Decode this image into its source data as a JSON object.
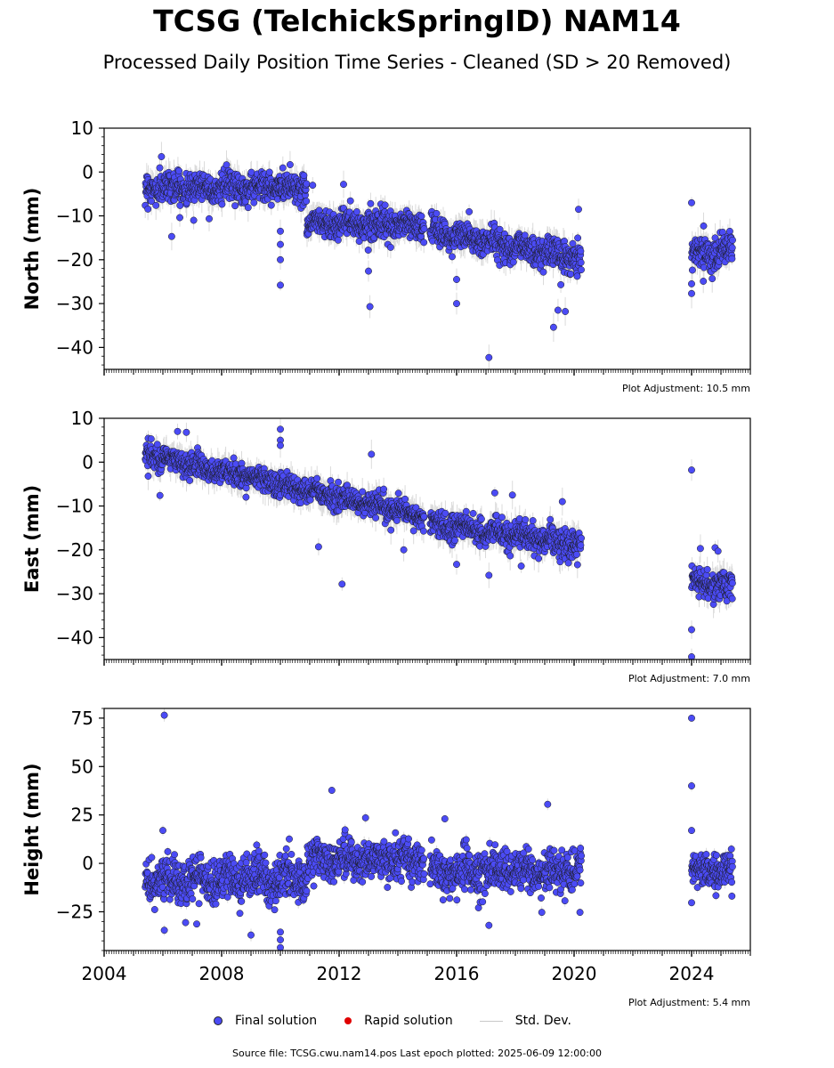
{
  "title": "TCSG (TelchickSpringID) NAM14",
  "subtitle": "Processed Daily Position Time Series - Cleaned (SD > 20 Removed)",
  "source_note": "Source file: TCSG.cwu.nam14.pos  Last epoch plotted: 2025-06-09 12:00:00",
  "legend": {
    "final": "Final solution",
    "rapid": "Rapid solution",
    "std": "Std. Dev."
  },
  "colors": {
    "final_fill": "#4b4bf5",
    "final_edge": "#1a1a1a",
    "rapid": "#e00000",
    "std_dev": "#bdbdbd"
  },
  "chart_data": [
    {
      "type": "scatter",
      "ylabel": "North (mm)",
      "adjustment_label": "Plot Adjustment: 10.5 mm",
      "xlim": [
        2004.0,
        2026.0
      ],
      "ylim": [
        -45,
        10
      ],
      "yticks": [
        10,
        0,
        -10,
        -20,
        -30,
        -40
      ],
      "xticks": [
        2004,
        2008,
        2012,
        2016,
        2020,
        2024
      ],
      "show_xtick_labels": false,
      "segments": [
        {
          "x": [
            2005.4,
            2010.9
          ],
          "y0": -3.5,
          "slope": 0,
          "noise": 2.2
        },
        {
          "x": [
            2010.9,
            2014.9
          ],
          "y0": -11.5,
          "slope": -0.2,
          "noise": 2.0
        },
        {
          "x": [
            2015.1,
            2020.25
          ],
          "y0": -13.5,
          "slope": -1.2,
          "noise": 2.2
        },
        {
          "x": [
            2024.0,
            2025.4
          ],
          "y0": -18.5,
          "slope": 0.5,
          "noise": 2.3
        }
      ],
      "outliers": [
        [
          2005.95,
          3.5
        ],
        [
          2006.3,
          -14.7
        ],
        [
          2007.05,
          -11
        ],
        [
          2010.0,
          -25.8
        ],
        [
          2010.0,
          -20
        ],
        [
          2010.0,
          -16.5
        ],
        [
          2010.0,
          -13.5
        ],
        [
          2011.1,
          -3
        ],
        [
          2012.15,
          -2.8
        ],
        [
          2013.0,
          -22.6
        ],
        [
          2013.05,
          -30.7
        ],
        [
          2016.0,
          -24.5
        ],
        [
          2016.0,
          -30
        ],
        [
          2017.1,
          -42.3
        ],
        [
          2019.3,
          -35.4
        ],
        [
          2019.45,
          -31.5
        ],
        [
          2019.55,
          -25.7
        ],
        [
          2019.7,
          -31.8
        ],
        [
          2020.15,
          -8.5
        ],
        [
          2024.0,
          -7
        ],
        [
          2024.0,
          -25.5
        ],
        [
          2024.0,
          -27.7
        ],
        [
          2024.4,
          -24.9
        ]
      ]
    },
    {
      "type": "scatter",
      "ylabel": "East (mm)",
      "adjustment_label": "Plot Adjustment: 7.0 mm",
      "xlim": [
        2004.0,
        2026.0
      ],
      "ylim": [
        -45,
        10
      ],
      "yticks": [
        10,
        0,
        -10,
        -20,
        -30,
        -40
      ],
      "xticks": [
        2004,
        2008,
        2012,
        2016,
        2020,
        2024
      ],
      "show_xtick_labels": false,
      "segments": [
        {
          "x": [
            2005.4,
            2014.9
          ],
          "y0": 2.0,
          "slope": -1.53,
          "noise": 1.8
        },
        {
          "x": [
            2015.1,
            2020.25
          ],
          "y0": -14.0,
          "slope": -0.95,
          "noise": 2.0
        },
        {
          "x": [
            2024.0,
            2025.4
          ],
          "y0": -27.0,
          "slope": -1.2,
          "noise": 2.0
        }
      ],
      "outliers": [
        [
          2005.5,
          -3.2
        ],
        [
          2005.9,
          -7.6
        ],
        [
          2006.5,
          7.0
        ],
        [
          2006.8,
          6.8
        ],
        [
          2010.0,
          7.5
        ],
        [
          2010.0,
          5.0
        ],
        [
          2010.0,
          3.8
        ],
        [
          2011.3,
          -19.3
        ],
        [
          2012.1,
          -27.8
        ],
        [
          2013.1,
          1.8
        ],
        [
          2014.2,
          -20
        ],
        [
          2016.0,
          -23.3
        ],
        [
          2017.1,
          -25.8
        ],
        [
          2017.3,
          -7
        ],
        [
          2017.9,
          -7.5
        ],
        [
          2018.2,
          -23.7
        ],
        [
          2019.6,
          -9
        ],
        [
          2024.0,
          -1.8
        ],
        [
          2024.0,
          -38.2
        ],
        [
          2024.0,
          -44.4
        ],
        [
          2024.3,
          -19.7
        ],
        [
          2024.8,
          -19.5
        ],
        [
          2024.9,
          -20.3
        ]
      ]
    },
    {
      "type": "scatter",
      "ylabel": "Height (mm)",
      "adjustment_label": "Plot Adjustment: 5.4 mm",
      "xlim": [
        2004.0,
        2026.0
      ],
      "ylim": [
        -45,
        80
      ],
      "yticks": [
        75,
        50,
        25,
        0,
        -25
      ],
      "xticks": [
        2004,
        2008,
        2012,
        2016,
        2020,
        2024
      ],
      "show_xtick_labels": true,
      "segments": [
        {
          "x": [
            2005.4,
            2010.9
          ],
          "y0": -8.0,
          "slope": 0,
          "noise": 7.5
        },
        {
          "x": [
            2010.9,
            2014.9
          ],
          "y0": 2.0,
          "slope": 0,
          "noise": 6.5
        },
        {
          "x": [
            2015.1,
            2020.25
          ],
          "y0": -4.0,
          "slope": 0,
          "noise": 7.0
        },
        {
          "x": [
            2024.0,
            2025.4
          ],
          "y0": -4.0,
          "slope": 0,
          "noise": 6.0
        }
      ],
      "outliers": [
        [
          2006.05,
          76.5
        ],
        [
          2006.0,
          17
        ],
        [
          2006.05,
          -34.5
        ],
        [
          2007.15,
          -31.3
        ],
        [
          2009.0,
          -37
        ],
        [
          2010.0,
          -35.5
        ],
        [
          2010.0,
          -39.5
        ],
        [
          2010.0,
          -43.5
        ],
        [
          2011.75,
          37.7
        ],
        [
          2012.9,
          23.5
        ],
        [
          2015.6,
          23
        ],
        [
          2017.1,
          -32
        ],
        [
          2019.1,
          30.5
        ],
        [
          2018.9,
          -25.3
        ],
        [
          2020.2,
          -25.3
        ],
        [
          2024.0,
          75
        ],
        [
          2024.0,
          40
        ],
        [
          2024.0,
          17
        ],
        [
          2024.0,
          -20.3
        ]
      ]
    }
  ]
}
